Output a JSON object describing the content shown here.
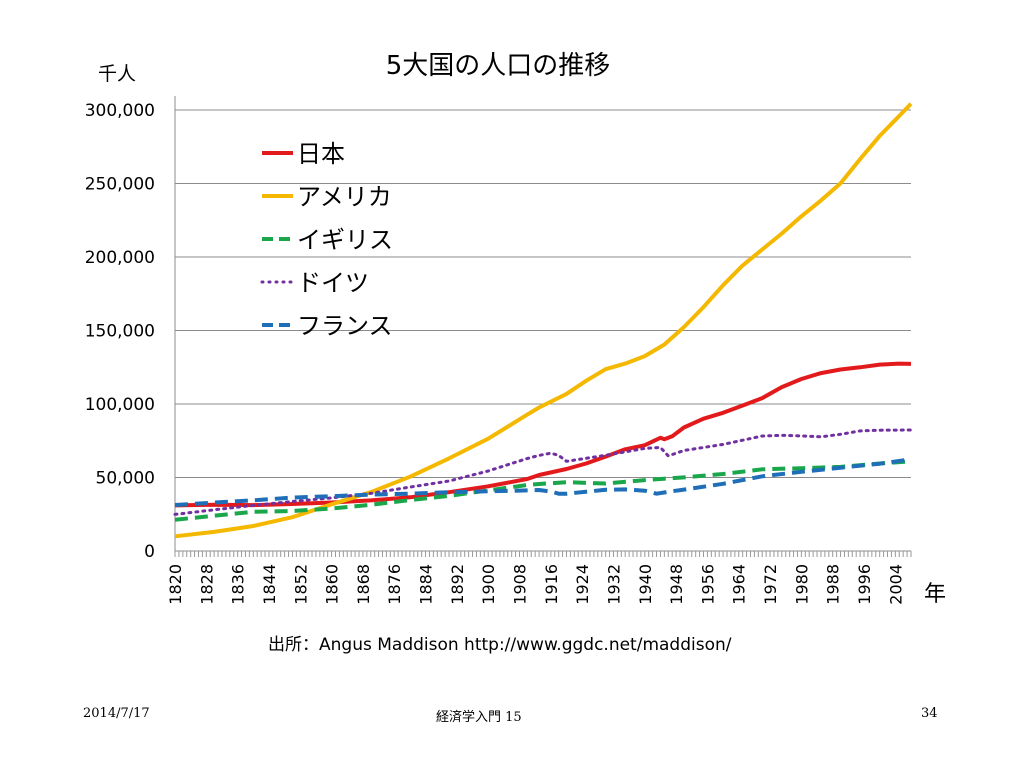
{
  "slide": {
    "source": "出所：Angus Maddison  http://www.ggdc.net/maddison/",
    "footer_date": "2014/7/17",
    "footer_course": "経済学入門 15",
    "footer_page": "34"
  },
  "chart_data": {
    "type": "line",
    "title": "5大国の人口の推移",
    "ylabel": "千人",
    "xlabel": "年",
    "xlim": [
      1820,
      2008
    ],
    "ylim": [
      0,
      300000
    ],
    "grid": true,
    "legend": "top-left (inside plot)",
    "y_ticks": [
      "0",
      "50,000",
      "100,000",
      "150,000",
      "200,000",
      "250,000",
      "300,000"
    ],
    "x_ticks": [
      "1820",
      "1828",
      "1836",
      "1844",
      "1852",
      "1860",
      "1868",
      "1876",
      "1884",
      "1892",
      "1900",
      "1908",
      "1916",
      "1924",
      "1932",
      "1940",
      "1948",
      "1956",
      "1964",
      "1972",
      "1980",
      "1988",
      "1996",
      "2004"
    ],
    "series": [
      {
        "name": "日本",
        "color": "#e31a1c",
        "dash": "solid",
        "points": [
          [
            1820,
            31000
          ],
          [
            1830,
            31500
          ],
          [
            1840,
            31200
          ],
          [
            1850,
            32000
          ],
          [
            1860,
            33000
          ],
          [
            1870,
            34400
          ],
          [
            1880,
            36500
          ],
          [
            1890,
            40000
          ],
          [
            1900,
            44000
          ],
          [
            1910,
            49000
          ],
          [
            1913,
            51700
          ],
          [
            1920,
            55800
          ],
          [
            1925,
            59500
          ],
          [
            1930,
            64200
          ],
          [
            1935,
            69200
          ],
          [
            1940,
            72000
          ],
          [
            1944,
            77000
          ],
          [
            1945,
            76000
          ],
          [
            1947,
            78000
          ],
          [
            1950,
            84000
          ],
          [
            1955,
            90000
          ],
          [
            1960,
            94000
          ],
          [
            1965,
            99000
          ],
          [
            1970,
            104000
          ],
          [
            1975,
            111500
          ],
          [
            1980,
            117000
          ],
          [
            1985,
            121000
          ],
          [
            1990,
            123500
          ],
          [
            1995,
            125000
          ],
          [
            2000,
            126800
          ],
          [
            2005,
            127500
          ],
          [
            2008,
            127300
          ]
        ]
      },
      {
        "name": "アメリカ",
        "color": "#f5b800",
        "dash": "solid",
        "points": [
          [
            1820,
            10000
          ],
          [
            1830,
            13000
          ],
          [
            1840,
            17000
          ],
          [
            1850,
            23000
          ],
          [
            1860,
            31800
          ],
          [
            1870,
            40000
          ],
          [
            1880,
            50500
          ],
          [
            1890,
            63000
          ],
          [
            1900,
            76400
          ],
          [
            1910,
            92800
          ],
          [
            1913,
            97600
          ],
          [
            1920,
            106900
          ],
          [
            1925,
            115800
          ],
          [
            1930,
            123700
          ],
          [
            1935,
            127500
          ],
          [
            1940,
            132600
          ],
          [
            1945,
            140500
          ],
          [
            1950,
            152300
          ],
          [
            1955,
            165900
          ],
          [
            1960,
            180800
          ],
          [
            1965,
            194300
          ],
          [
            1970,
            205100
          ],
          [
            1975,
            216000
          ],
          [
            1980,
            227700
          ],
          [
            1985,
            238500
          ],
          [
            1990,
            250100
          ],
          [
            1995,
            266600
          ],
          [
            2000,
            282400
          ],
          [
            2005,
            296000
          ],
          [
            2008,
            304300
          ]
        ]
      },
      {
        "name": "イギリス",
        "color": "#1aa64a",
        "dash": "dash",
        "points": [
          [
            1820,
            21200
          ],
          [
            1830,
            24000
          ],
          [
            1840,
            26700
          ],
          [
            1850,
            27200
          ],
          [
            1860,
            28900
          ],
          [
            1870,
            31400
          ],
          [
            1880,
            34600
          ],
          [
            1890,
            37500
          ],
          [
            1900,
            41200
          ],
          [
            1910,
            44900
          ],
          [
            1913,
            45600
          ],
          [
            1920,
            46800
          ],
          [
            1930,
            45900
          ],
          [
            1940,
            48200
          ],
          [
            1950,
            50100
          ],
          [
            1960,
            52400
          ],
          [
            1970,
            55600
          ],
          [
            1980,
            56300
          ],
          [
            1990,
            57200
          ],
          [
            2000,
            59500
          ],
          [
            2008,
            61000
          ]
        ]
      },
      {
        "name": "ドイツ",
        "color": "#7030a0",
        "dash": "dot",
        "points": [
          [
            1820,
            24900
          ],
          [
            1830,
            28000
          ],
          [
            1840,
            31000
          ],
          [
            1850,
            33700
          ],
          [
            1860,
            36100
          ],
          [
            1870,
            39200
          ],
          [
            1880,
            43500
          ],
          [
            1890,
            47600
          ],
          [
            1900,
            54400
          ],
          [
            1910,
            62900
          ],
          [
            1913,
            65000
          ],
          [
            1916,
            66500
          ],
          [
            1918,
            65000
          ],
          [
            1920,
            61000
          ],
          [
            1930,
            65100
          ],
          [
            1940,
            69800
          ],
          [
            1944,
            70500
          ],
          [
            1946,
            64700
          ],
          [
            1950,
            68400
          ],
          [
            1960,
            72500
          ],
          [
            1970,
            78200
          ],
          [
            1975,
            78700
          ],
          [
            1980,
            78300
          ],
          [
            1985,
            77700
          ],
          [
            1990,
            79400
          ],
          [
            1995,
            81700
          ],
          [
            2000,
            82200
          ],
          [
            2008,
            82300
          ]
        ]
      },
      {
        "name": "フランス",
        "color": "#1f6fb8",
        "dash": "dash",
        "points": [
          [
            1820,
            31300
          ],
          [
            1830,
            32900
          ],
          [
            1840,
            34500
          ],
          [
            1850,
            36300
          ],
          [
            1860,
            37300
          ],
          [
            1870,
            38400
          ],
          [
            1880,
            39000
          ],
          [
            1890,
            40000
          ],
          [
            1900,
            40600
          ],
          [
            1910,
            41200
          ],
          [
            1913,
            41500
          ],
          [
            1916,
            40500
          ],
          [
            1918,
            39000
          ],
          [
            1920,
            39000
          ],
          [
            1930,
            41600
          ],
          [
            1935,
            41900
          ],
          [
            1940,
            41000
          ],
          [
            1943,
            39000
          ],
          [
            1946,
            40300
          ],
          [
            1950,
            41800
          ],
          [
            1960,
            45700
          ],
          [
            1970,
            50800
          ],
          [
            1980,
            53900
          ],
          [
            1990,
            56700
          ],
          [
            2000,
            59400
          ],
          [
            2008,
            62400
          ]
        ]
      }
    ]
  }
}
